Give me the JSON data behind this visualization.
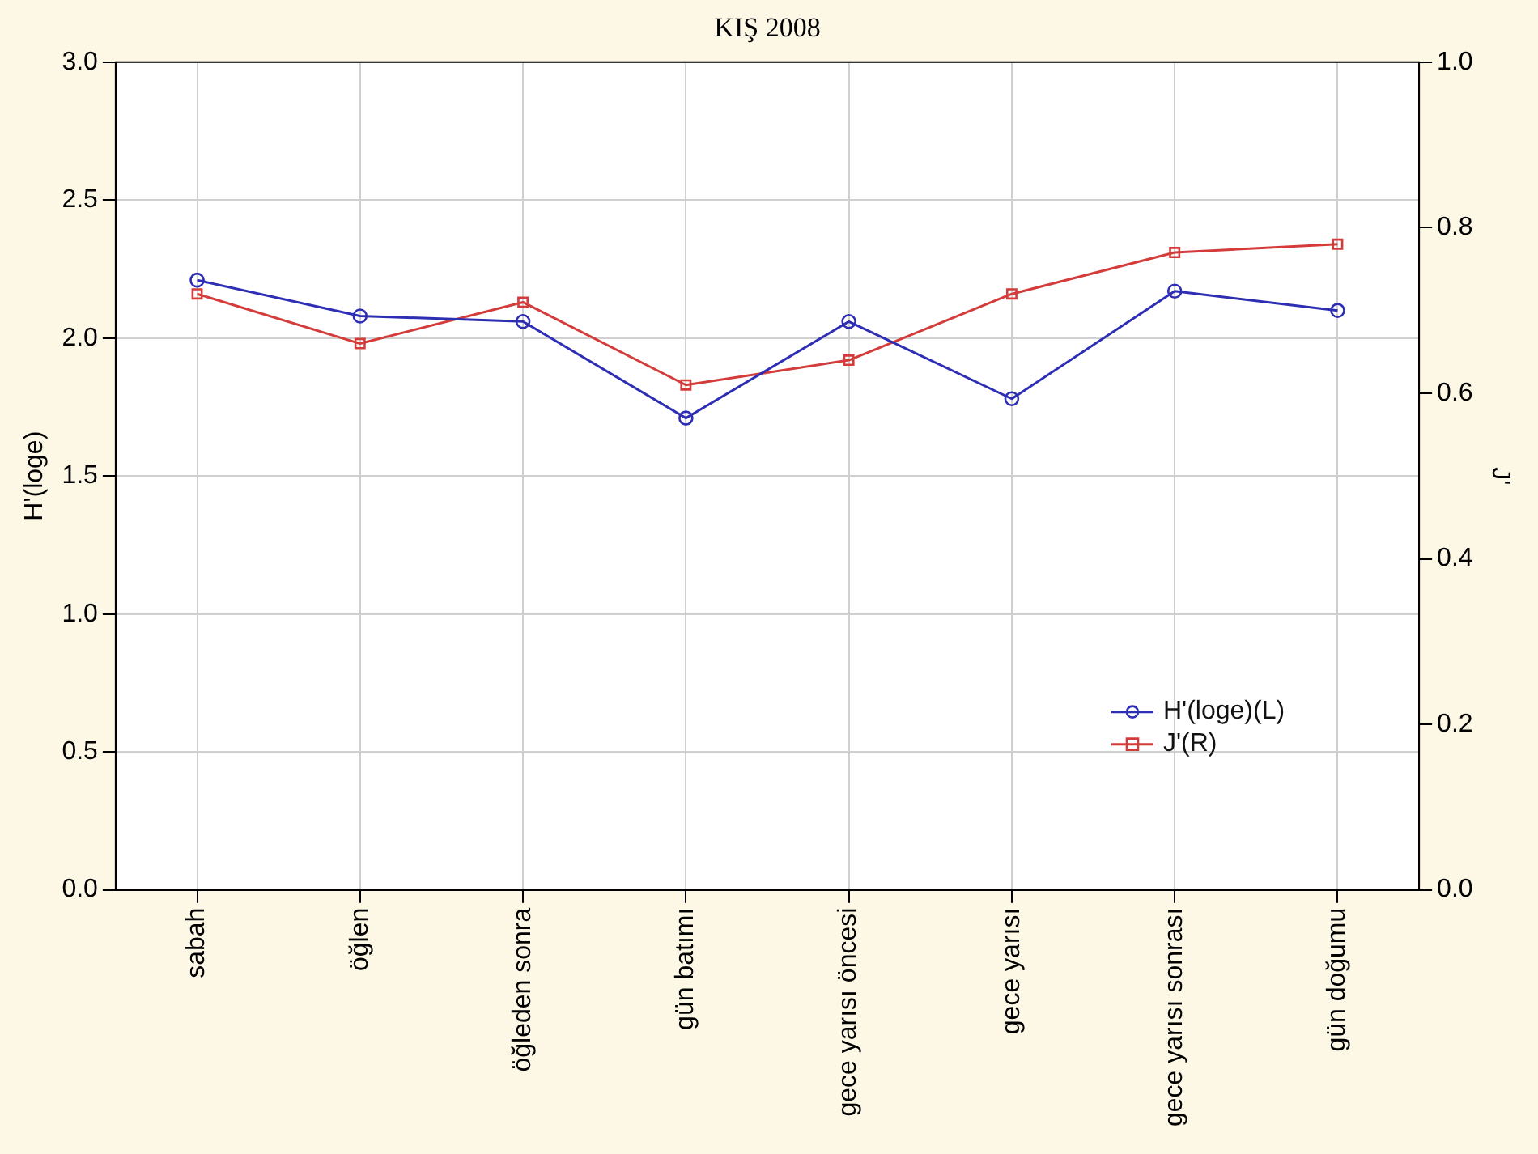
{
  "chart_data": {
    "type": "line",
    "title": "KIŞ 2008",
    "ylabel": "H'(loge)",
    "y2label": "J'",
    "categories": [
      "sabah",
      "öğlen",
      "öğleden sonra",
      "gün batımı",
      "gece yarısı öncesi",
      "gece yarısı",
      "gece yarısı sonrası",
      "gün doğumu"
    ],
    "series": [
      {
        "name": "H'(loge)(L)",
        "color": "#2e2eb4",
        "marker": "circle",
        "values": [
          2.21,
          2.08,
          2.06,
          1.71,
          2.06,
          1.78,
          2.17,
          2.1
        ]
      },
      {
        "name": "J'(R)",
        "color": "#d43c3c",
        "marker": "square",
        "axis": "y2",
        "values": [
          0.72,
          0.66,
          0.71,
          0.61,
          0.64,
          0.72,
          0.77,
          0.78
        ]
      }
    ],
    "ylim": [
      0,
      3
    ],
    "yticks": [
      {
        "value": 0,
        "label": "0.0"
      },
      {
        "value": 0.5,
        "label": "0.5"
      },
      {
        "value": 1,
        "label": "1.0"
      },
      {
        "value": 1.5,
        "label": "1.5"
      },
      {
        "value": 2,
        "label": "2.0"
      },
      {
        "value": 2.5,
        "label": "2.5"
      },
      {
        "value": 3,
        "label": "3.0"
      }
    ],
    "y2lim": [
      0,
      1
    ],
    "y2ticks": [
      {
        "value": 0,
        "label": "0.0"
      },
      {
        "value": 0.2,
        "label": "0.2"
      },
      {
        "value": 0.4,
        "label": "0.4"
      },
      {
        "value": 0.6,
        "label": "0.6"
      },
      {
        "value": 0.8,
        "label": "0.8"
      },
      {
        "value": 1,
        "label": "1.0"
      }
    ],
    "grid": true,
    "legend": "bottom right",
    "line_style": "solid"
  }
}
